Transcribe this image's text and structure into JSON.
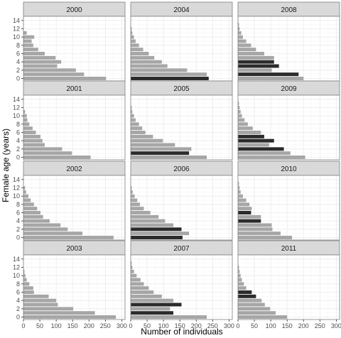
{
  "chart_data": {
    "type": "bar",
    "orientation": "horizontal",
    "facet_layout": "4 rows x 3 columns",
    "xlabel": "Number of individuals",
    "ylabel": "Female age (years)",
    "xlim": [
      0,
      310
    ],
    "ylim": [
      -0.6,
      15
    ],
    "x_ticks": [
      0,
      50,
      100,
      150,
      200,
      250,
      300
    ],
    "y_ticks": [
      0,
      2,
      4,
      6,
      8,
      10,
      12,
      14
    ],
    "grid": true,
    "colors": {
      "bar": "#a6a6a6",
      "bar_highlight": "#2b2b2b",
      "strip": "#d9d9d9",
      "panel_border": "#7f7f7f",
      "grid": "#ebebeb"
    },
    "panels": [
      {
        "title": "2000",
        "ages": [
          0,
          1,
          2,
          3,
          4,
          5,
          6,
          7,
          8,
          9,
          10,
          11
        ],
        "values": [
          252,
          185,
          160,
          103,
          115,
          98,
          65,
          45,
          30,
          25,
          33,
          10
        ],
        "highlighted_ages": []
      },
      {
        "title": "2004",
        "ages": [
          0,
          1,
          2,
          3,
          4,
          5,
          6,
          7,
          8,
          9,
          10,
          11,
          12
        ],
        "values": [
          238,
          232,
          172,
          112,
          95,
          72,
          55,
          38,
          25,
          15,
          10,
          5,
          3
        ],
        "highlighted_ages": [
          0
        ]
      },
      {
        "title": "2008",
        "ages": [
          0,
          1,
          2,
          3,
          4,
          5,
          6,
          7,
          8,
          9,
          10,
          11,
          12,
          13
        ],
        "values": [
          200,
          185,
          103,
          125,
          110,
          110,
          80,
          55,
          40,
          25,
          15,
          10,
          5,
          3
        ],
        "highlighted_ages": [
          1,
          3,
          4
        ]
      },
      {
        "title": "2001",
        "ages": [
          0,
          1,
          2,
          3,
          4,
          5,
          6,
          7,
          8,
          9,
          10,
          11
        ],
        "values": [
          205,
          148,
          118,
          65,
          58,
          52,
          38,
          28,
          18,
          12,
          10,
          5
        ],
        "highlighted_ages": []
      },
      {
        "title": "2005",
        "ages": [
          0,
          1,
          2,
          3,
          4,
          5,
          6,
          7,
          8,
          9,
          10,
          11,
          12
        ],
        "values": [
          232,
          178,
          185,
          135,
          98,
          68,
          45,
          35,
          25,
          15,
          10,
          5,
          3
        ],
        "highlighted_ages": [
          1
        ]
      },
      {
        "title": "2009",
        "ages": [
          0,
          1,
          2,
          3,
          4,
          5,
          6,
          7,
          8,
          9,
          10,
          11,
          12,
          13
        ],
        "values": [
          205,
          160,
          140,
          95,
          110,
          80,
          70,
          45,
          30,
          20,
          12,
          8,
          5,
          3
        ],
        "highlighted_ages": [
          2,
          4,
          5
        ]
      },
      {
        "title": "2002",
        "ages": [
          0,
          1,
          2,
          3,
          4,
          5,
          6,
          7,
          8,
          9,
          10,
          11,
          12
        ],
        "values": [
          275,
          180,
          135,
          113,
          80,
          60,
          52,
          42,
          32,
          22,
          15,
          8,
          5
        ],
        "highlighted_ages": []
      },
      {
        "title": "2006",
        "ages": [
          0,
          1,
          2,
          3,
          4,
          5,
          6,
          7,
          8,
          9,
          10,
          11,
          12
        ],
        "values": [
          158,
          178,
          155,
          130,
          105,
          85,
          60,
          40,
          28,
          20,
          12,
          6,
          3
        ],
        "highlighted_ages": [
          0,
          2
        ]
      },
      {
        "title": "2010",
        "ages": [
          0,
          1,
          2,
          3,
          4,
          5,
          6,
          7,
          8,
          9,
          10,
          11,
          12,
          13
        ],
        "values": [
          165,
          130,
          105,
          103,
          70,
          70,
          40,
          42,
          35,
          25,
          15,
          8,
          5,
          3
        ],
        "highlighted_ages": [
          4,
          6
        ]
      },
      {
        "title": "2003",
        "ages": [
          0,
          1,
          2,
          3,
          4,
          5,
          6,
          7,
          8,
          9,
          10,
          11
        ],
        "values": [
          282,
          218,
          152,
          105,
          100,
          77,
          32,
          30,
          18,
          10,
          6,
          3
        ],
        "highlighted_ages": []
      },
      {
        "title": "2007",
        "ages": [
          0,
          1,
          2,
          3,
          4,
          5,
          6,
          7,
          8,
          9,
          10,
          11,
          12,
          13
        ],
        "values": [
          232,
          130,
          120,
          155,
          130,
          95,
          70,
          55,
          40,
          30,
          18,
          10,
          5,
          3
        ],
        "highlighted_ages": [
          1,
          3
        ]
      },
      {
        "title": "2011",
        "ages": [
          0,
          1,
          2,
          3,
          4,
          5,
          6,
          7,
          8,
          9,
          10,
          11,
          12
        ],
        "values": [
          150,
          115,
          98,
          82,
          72,
          55,
          42,
          25,
          18,
          12,
          8,
          5,
          3
        ],
        "highlighted_ages": [
          5,
          6
        ]
      }
    ]
  }
}
